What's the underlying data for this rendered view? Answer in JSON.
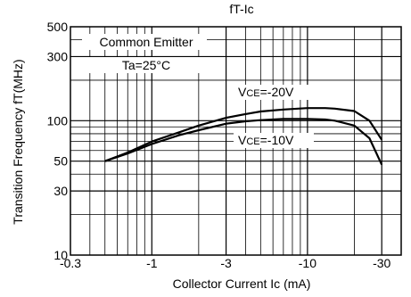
{
  "chart_data": {
    "type": "line",
    "title": "fT-Ic",
    "xlabel": "Collector Current Ic (mA)",
    "ylabel": "Transition Frequency fT(MHz)",
    "x_scale": "log",
    "y_scale": "log",
    "xlim": [
      -0.3,
      -40
    ],
    "ylim": [
      10,
      500
    ],
    "x_tick_labels": [
      {
        "value": -0.3,
        "label": "-0.3"
      },
      {
        "value": -1,
        "label": "-1"
      },
      {
        "value": -3,
        "label": "-3"
      },
      {
        "value": -10,
        "label": "-10"
      },
      {
        "value": -30,
        "label": "-30"
      }
    ],
    "y_tick_labels": [
      {
        "value": 10,
        "label": "10"
      },
      {
        "value": 30,
        "label": "30"
      },
      {
        "value": 50,
        "label": "50"
      },
      {
        "value": 100,
        "label": "100"
      },
      {
        "value": 300,
        "label": "300"
      },
      {
        "value": 500,
        "label": "500"
      }
    ],
    "grid": true,
    "annotations": {
      "line1": "Common Emitter",
      "line2": "Ta=25°C"
    },
    "series": [
      {
        "name": "VCE=-20V",
        "label_main": "V",
        "label_sub": "CE",
        "label_rest": "=-20V",
        "x": [
          -0.5,
          -0.7,
          -1,
          -1.5,
          -2,
          -3,
          -4,
          -5,
          -7,
          -10,
          -13,
          -15,
          -20,
          -25,
          -30
        ],
        "y": [
          50,
          58,
          70,
          82,
          92,
          105,
          112,
          117,
          121,
          124,
          124,
          123,
          118,
          100,
          72
        ]
      },
      {
        "name": "VCE=-10V",
        "label_main": "V",
        "label_sub": "CE",
        "label_rest": "=-10V",
        "x": [
          -0.5,
          -0.7,
          -1,
          -1.5,
          -2,
          -3,
          -4,
          -5,
          -7,
          -10,
          -13,
          -15,
          -20,
          -25,
          -30
        ],
        "y": [
          50,
          57,
          67,
          78,
          85,
          95,
          99,
          101,
          103,
          103,
          102,
          100,
          92,
          74,
          47
        ]
      }
    ]
  }
}
